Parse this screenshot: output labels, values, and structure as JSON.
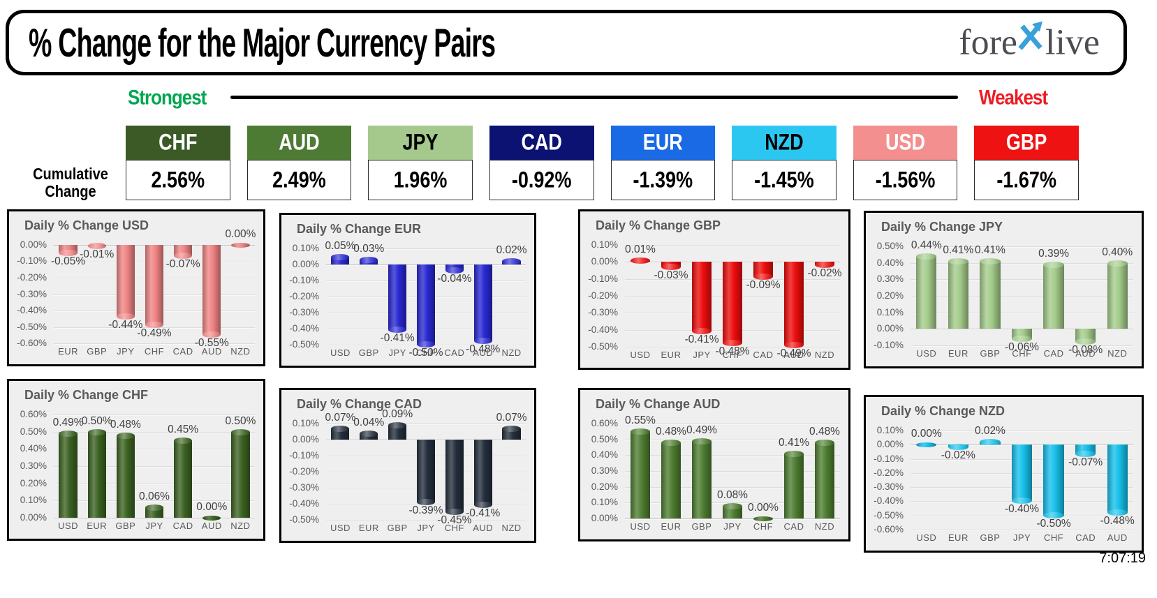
{
  "header": {
    "title": "% Change for the Major Currency Pairs",
    "logo": {
      "text_left": "fore",
      "text_right": "live",
      "arrow_color": "#3aa0d8",
      "text_color": "#4b4b52"
    }
  },
  "legend": {
    "strongest_label": "Strongest",
    "weakest_label": "Weakest",
    "strongest_color": "#00a650",
    "weakest_color": "#ec1c24"
  },
  "cumulative_label": {
    "line1": "Cumulative",
    "line2": "Change"
  },
  "footer": {
    "timestamp": "7:07:19"
  },
  "chart_data": [
    {
      "id": "cumulative",
      "type": "table",
      "title": "Cumulative Change",
      "categories": [
        "CHF",
        "AUD",
        "JPY",
        "CAD",
        "EUR",
        "NZD",
        "USD",
        "GBP"
      ],
      "values": [
        2.56,
        2.49,
        1.96,
        -0.92,
        -1.39,
        -1.45,
        -1.56,
        -1.67
      ],
      "display": [
        "2.56%",
        "2.49%",
        "1.96%",
        "-0.92%",
        "-1.39%",
        "-1.45%",
        "-1.56%",
        "-1.67%"
      ],
      "box_colors": [
        "#3b5a26",
        "#4e7b33",
        "#a5c88c",
        "#0b1272",
        "#1a6ae5",
        "#2cc7f0",
        "#f48f8f",
        "#ee1212"
      ],
      "text_colors": [
        "#ffffff",
        "#ffffff",
        "#000000",
        "#ffffff",
        "#ffffff",
        "#000000",
        "#ffffff",
        "#ffffff"
      ]
    },
    {
      "id": "usd",
      "type": "bar",
      "title": "Daily % Change USD",
      "grid": true,
      "categories": [
        "EUR",
        "GBP",
        "JPY",
        "CHF",
        "CAD",
        "AUD",
        "NZD"
      ],
      "values": [
        -0.05,
        -0.01,
        -0.44,
        -0.49,
        -0.07,
        -0.55,
        0.0
      ],
      "ylim": [
        -0.6,
        0.0
      ],
      "ystep": 0.1,
      "bar_color": "#ef8484"
    },
    {
      "id": "eur",
      "type": "bar",
      "title": "Daily % Change EUR",
      "grid": true,
      "categories": [
        "USD",
        "GBP",
        "JPY",
        "CHF",
        "CAD",
        "AUD",
        "NZD"
      ],
      "values": [
        0.05,
        0.03,
        -0.41,
        -0.5,
        -0.04,
        -0.48,
        0.02
      ],
      "ylim": [
        -0.5,
        0.1
      ],
      "ystep": 0.1,
      "bar_color": "#2828d2"
    },
    {
      "id": "gbp",
      "type": "bar",
      "title": "Daily % Change GBP",
      "grid": true,
      "categories": [
        "USD",
        "EUR",
        "JPY",
        "CHF",
        "CAD",
        "AUD",
        "NZD"
      ],
      "values": [
        0.01,
        -0.03,
        -0.41,
        -0.48,
        -0.09,
        -0.49,
        -0.02
      ],
      "ylim": [
        -0.5,
        0.1
      ],
      "ystep": 0.1,
      "bar_color": "#ed0c0c"
    },
    {
      "id": "jpy",
      "type": "bar",
      "title": "Daily % Change JPY",
      "grid": true,
      "categories": [
        "USD",
        "EUR",
        "GBP",
        "CHF",
        "CAD",
        "AUD",
        "NZD"
      ],
      "values": [
        0.44,
        0.41,
        0.41,
        -0.06,
        0.39,
        -0.08,
        0.4
      ],
      "ylim": [
        -0.1,
        0.5
      ],
      "ystep": 0.1,
      "bar_color": "#a4cc8b"
    },
    {
      "id": "chf",
      "type": "bar",
      "title": "Daily % Change CHF",
      "grid": true,
      "categories": [
        "USD",
        "EUR",
        "GBP",
        "JPY",
        "CAD",
        "AUD",
        "NZD"
      ],
      "values": [
        0.49,
        0.5,
        0.48,
        0.06,
        0.45,
        0.0,
        0.5
      ],
      "ylim": [
        0.0,
        0.6
      ],
      "ystep": 0.1,
      "bar_color": "#3c6322"
    },
    {
      "id": "cad",
      "type": "bar",
      "title": "Daily % Change CAD",
      "grid": true,
      "categories": [
        "USD",
        "EUR",
        "GBP",
        "JPY",
        "CHF",
        "AUD",
        "NZD"
      ],
      "values": [
        0.07,
        0.04,
        0.09,
        -0.39,
        -0.45,
        -0.41,
        0.07
      ],
      "ylim": [
        -0.5,
        0.1
      ],
      "ystep": 0.1,
      "bar_color": "#242e3c"
    },
    {
      "id": "aud",
      "type": "bar",
      "title": "Daily % Change AUD",
      "grid": true,
      "categories": [
        "USD",
        "EUR",
        "GBP",
        "JPY",
        "CHF",
        "CAD",
        "NZD"
      ],
      "values": [
        0.55,
        0.48,
        0.49,
        0.08,
        0.0,
        0.41,
        0.48
      ],
      "ylim": [
        0.0,
        0.6
      ],
      "ystep": 0.1,
      "bar_color": "#4e7d31"
    },
    {
      "id": "nzd",
      "type": "bar",
      "title": "Daily % Change NZD",
      "grid": true,
      "categories": [
        "USD",
        "EUR",
        "GBP",
        "JPY",
        "CHF",
        "CAD",
        "AUD"
      ],
      "values": [
        0.0,
        -0.02,
        0.02,
        -0.4,
        -0.5,
        -0.07,
        -0.48
      ],
      "ylim": [
        -0.6,
        0.1
      ],
      "ystep": 0.1,
      "bar_color": "#16c0ea"
    }
  ]
}
